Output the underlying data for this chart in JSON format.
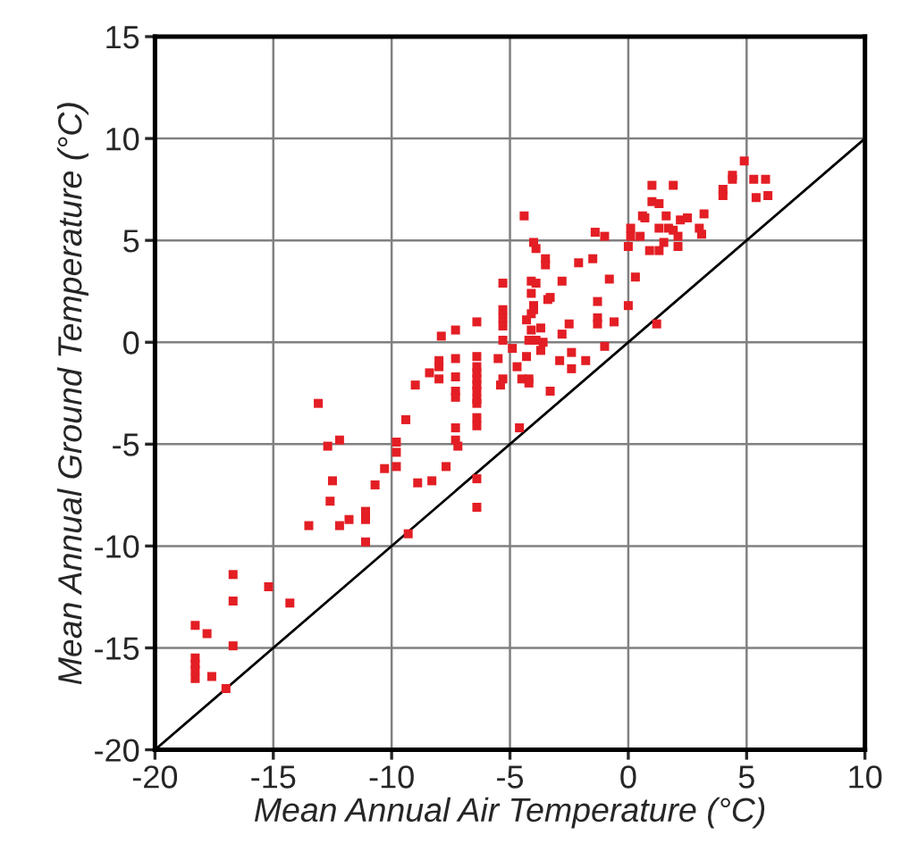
{
  "chart_data": {
    "type": "scatter",
    "xlabel": "Mean Annual Air Temperature (°C)",
    "ylabel": "Mean Annual Ground Temperature (°C)",
    "xlim": [
      -20,
      10
    ],
    "ylim": [
      -20,
      15
    ],
    "xticks": [
      -20,
      -15,
      -10,
      -5,
      0,
      5,
      10
    ],
    "yticks": [
      -20,
      -15,
      -10,
      -5,
      0,
      5,
      10,
      15
    ],
    "grid": true,
    "series": [
      {
        "marker": "square",
        "color": "#e31e24",
        "x": [
          4.9,
          4.4,
          4.4,
          4.0,
          4.0,
          5.3,
          5.8,
          5.4,
          5.9,
          1.0,
          1.9,
          1.0,
          1.3,
          0.6,
          0.7,
          1.6,
          2.2,
          2.5,
          3.2,
          0.1,
          0.5,
          0.0,
          0.9,
          1.3,
          1.3,
          1.7,
          1.9,
          2.1,
          1.5,
          2.1,
          3.0,
          3.1,
          0.1,
          -4.4,
          -4.0,
          -3.9,
          -3.5,
          -3.5,
          -1.4,
          -1.0,
          -2.1,
          -1.5,
          0.3,
          -0.8,
          0.0,
          1.2,
          -1.3,
          -1.3,
          -1.3,
          -0.6,
          -1.0,
          -5.3,
          -5.3,
          -5.3,
          -5.3,
          -5.3,
          -4.9,
          -4.1,
          -3.9,
          -2.8,
          -4.1,
          -4.0,
          -3.3,
          -3.4,
          -4.1,
          -4.0,
          -4.3,
          -3.7,
          -4.1,
          -2.8,
          -2.5,
          -4.2,
          -3.9,
          -3.6,
          -3.7,
          -4.3,
          -2.9,
          -2.4,
          -1.8,
          -2.4,
          -3.3,
          -6.4,
          -7.3,
          -7.9,
          -5.5,
          -4.7,
          -5.3,
          -4.5,
          -4.2,
          -4.2,
          -7.3,
          -8.0,
          -8.0,
          -8.4,
          -8.0,
          -9.0,
          -7.3,
          -7.3,
          -7.3,
          -6.4,
          -6.4,
          -6.4,
          -6.4,
          -6.4,
          -6.4,
          -6.4,
          -6.4,
          -6.4,
          -6.4,
          -6.4,
          -6.4,
          -5.4,
          -7.3,
          -7.3,
          -7.2,
          -7.7,
          -9.4,
          -10.3,
          -10.7,
          -9.8,
          -9.8,
          -9.8,
          -8.9,
          -8.3,
          -9.3,
          -4.6,
          -13.1,
          -12.7,
          -12.2,
          -12.5,
          -12.6,
          -12.2,
          -11.8,
          -11.1,
          -11.1,
          -11.1,
          -13.5,
          -16.7,
          -16.7,
          -15.2,
          -14.3,
          -16.7,
          -18.3,
          -17.8,
          -18.3,
          -18.3,
          -18.3,
          -18.3,
          -17.6,
          -17.0
        ],
        "values": [
          8.9,
          8.2,
          8.0,
          7.5,
          7.2,
          8.0,
          8.0,
          7.1,
          7.2,
          7.7,
          7.7,
          6.9,
          6.8,
          6.2,
          6.1,
          6.2,
          6.0,
          6.1,
          6.3,
          5.2,
          5.2,
          4.7,
          4.5,
          4.5,
          5.6,
          5.6,
          5.5,
          5.2,
          4.9,
          4.7,
          5.6,
          5.3,
          5.6,
          6.2,
          4.9,
          4.6,
          4.1,
          3.8,
          5.4,
          5.2,
          3.9,
          4.1,
          3.2,
          3.1,
          1.8,
          0.9,
          2.0,
          1.2,
          0.9,
          1.0,
          -0.2,
          2.9,
          1.6,
          1.2,
          0.8,
          0.1,
          -0.3,
          3.0,
          2.9,
          3.0,
          2.4,
          1.8,
          2.2,
          2.1,
          1.4,
          1.6,
          1.1,
          0.7,
          0.6,
          0.4,
          0.9,
          0.1,
          0.1,
          0.0,
          -0.4,
          -0.7,
          -0.9,
          -0.5,
          -0.9,
          -1.3,
          -2.4,
          1.0,
          0.6,
          0.3,
          -0.8,
          -1.2,
          -1.8,
          -1.8,
          -1.8,
          -2.0,
          -0.8,
          -0.9,
          -1.2,
          -1.5,
          -1.8,
          -2.1,
          -1.7,
          -2.4,
          -2.7,
          -0.7,
          -1.2,
          -1.5,
          -1.8,
          -2.1,
          -2.4,
          -2.8,
          -3.0,
          -3.7,
          -4.1,
          -6.7,
          -8.1,
          -2.1,
          -4.2,
          -4.8,
          -5.1,
          -6.1,
          -3.8,
          -6.2,
          -7.0,
          -4.9,
          -5.4,
          -6.1,
          -6.9,
          -6.8,
          -9.4,
          -4.2,
          -3.0,
          -5.1,
          -4.8,
          -6.8,
          -7.8,
          -9.0,
          -8.7,
          -8.3,
          -8.7,
          -9.8,
          -9.0,
          -11.4,
          -12.7,
          -12.0,
          -12.8,
          -14.9,
          -13.9,
          -14.3,
          -15.5,
          -15.8,
          -16.1,
          -16.5,
          -16.4,
          -17.0
        ]
      },
      {
        "type": "line",
        "color": "#000000",
        "x": [
          -20,
          10
        ],
        "values": [
          -20,
          10
        ]
      }
    ]
  }
}
